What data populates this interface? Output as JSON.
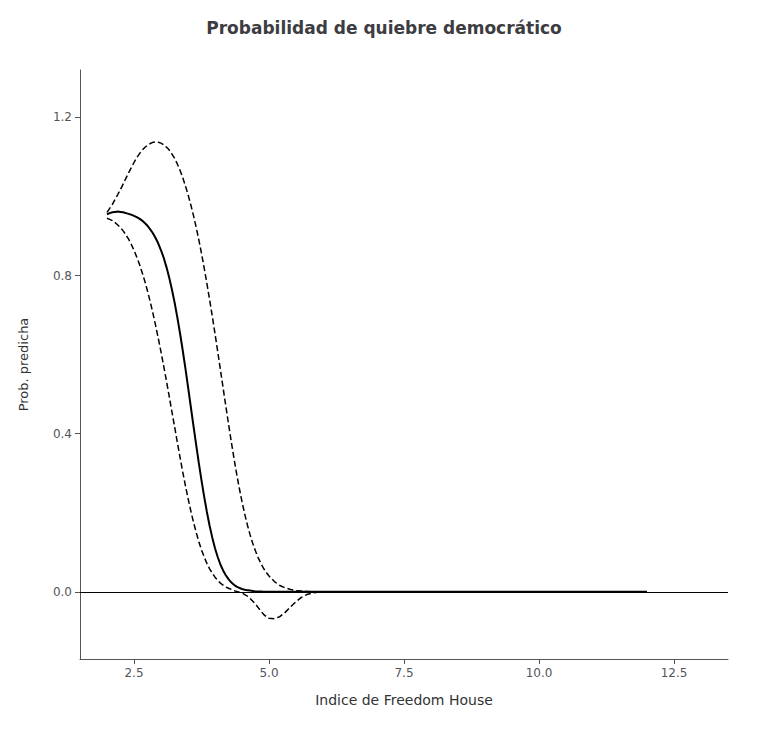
{
  "chart_data": {
    "type": "line",
    "title": "Probabilidad de quiebre democrático",
    "x_label": "Indice de Freedom House",
    "y_label": "Prob. predicha",
    "xlim": [
      1.5,
      13.5
    ],
    "ylim": [
      -0.17,
      1.32
    ],
    "xticks": [
      2.5,
      {
        "value": 5.0,
        "label": "5.0"
      },
      7.5,
      {
        "value": 10.0,
        "label": "10.0"
      },
      12.5
    ],
    "yticks": [
      {
        "value": 0.0,
        "label": "0.0"
      },
      0.4,
      0.8,
      1.2
    ],
    "grid": false,
    "series": [
      {
        "type": "line",
        "color": "#000000",
        "line_style": "solid",
        "x": [
          2.0,
          2.05,
          2.1,
          2.15,
          2.2,
          2.25,
          2.3,
          2.35,
          2.4,
          2.45,
          2.5,
          2.55,
          2.6,
          2.65,
          2.7,
          2.75,
          2.8,
          2.85,
          2.9,
          2.95,
          3.0,
          3.05,
          3.1,
          3.15,
          3.2,
          3.25,
          3.3,
          3.35,
          3.4,
          3.45,
          3.5,
          3.55,
          3.6,
          3.65,
          3.7,
          3.75,
          3.8,
          3.85,
          3.9,
          3.95,
          4.0,
          4.05,
          4.1,
          4.15,
          4.2,
          4.25,
          4.3,
          4.35,
          4.4,
          4.45,
          4.5,
          4.55,
          4.6,
          4.65,
          4.7,
          4.75,
          4.8,
          4.85,
          4.9,
          4.95,
          5.0,
          5.1,
          5.2,
          5.3,
          5.5,
          6.0,
          7.0,
          8.0,
          9.0,
          10.0,
          12.0
        ],
        "values": [
          0.955,
          0.958,
          0.96,
          0.961,
          0.962,
          0.961,
          0.96,
          0.958,
          0.956,
          0.954,
          0.951,
          0.948,
          0.944,
          0.939,
          0.933,
          0.926,
          0.917,
          0.907,
          0.895,
          0.881,
          0.864,
          0.845,
          0.822,
          0.796,
          0.766,
          0.733,
          0.696,
          0.656,
          0.613,
          0.567,
          0.519,
          0.47,
          0.421,
          0.373,
          0.326,
          0.282,
          0.24,
          0.202,
          0.167,
          0.137,
          0.11,
          0.088,
          0.069,
          0.054,
          0.042,
          0.032,
          0.024,
          0.018,
          0.013,
          0.01,
          0.007,
          0.005,
          0.004,
          0.003,
          0.002,
          0.001,
          0.001,
          0.001,
          0.0,
          0.0,
          0.0,
          0.0,
          0.0,
          0.0,
          0.0,
          0.0,
          0.0,
          0.0,
          0.0,
          0.0,
          0.0
        ]
      },
      {
        "type": "line",
        "color": "#000000",
        "line_style": "dashed",
        "x": [
          2.0,
          2.05,
          2.1,
          2.15,
          2.2,
          2.25,
          2.3,
          2.35,
          2.4,
          2.45,
          2.5,
          2.55,
          2.6,
          2.65,
          2.7,
          2.75,
          2.8,
          2.85,
          2.9,
          2.95,
          3.0,
          3.05,
          3.1,
          3.15,
          3.2,
          3.25,
          3.3,
          3.35,
          3.4,
          3.45,
          3.5,
          3.55,
          3.6,
          3.65,
          3.7,
          3.75,
          3.8,
          3.85,
          3.9,
          3.95,
          4.0,
          4.05,
          4.1,
          4.15,
          4.2,
          4.25,
          4.3,
          4.35,
          4.4,
          4.45,
          4.5,
          4.55,
          4.6,
          4.65,
          4.7,
          4.75,
          4.8,
          4.85,
          4.9,
          4.95,
          5.0,
          5.1,
          5.2,
          5.3,
          5.4,
          5.5,
          5.6,
          5.7,
          5.8,
          5.9,
          6.0,
          7.0,
          8.0,
          9.0,
          12.0
        ],
        "values": [
          0.96,
          0.97,
          0.98,
          0.993,
          1.005,
          1.018,
          1.032,
          1.046,
          1.06,
          1.073,
          1.086,
          1.098,
          1.108,
          1.117,
          1.124,
          1.13,
          1.134,
          1.137,
          1.138,
          1.137,
          1.135,
          1.131,
          1.125,
          1.118,
          1.108,
          1.097,
          1.083,
          1.067,
          1.049,
          1.028,
          1.005,
          0.98,
          0.953,
          0.923,
          0.891,
          0.856,
          0.819,
          0.78,
          0.739,
          0.697,
          0.653,
          0.608,
          0.562,
          0.516,
          0.47,
          0.425,
          0.381,
          0.339,
          0.299,
          0.262,
          0.228,
          0.197,
          0.169,
          0.144,
          0.122,
          0.103,
          0.086,
          0.072,
          0.059,
          0.049,
          0.04,
          0.026,
          0.016,
          0.01,
          0.006,
          0.003,
          0.002,
          0.001,
          0.0,
          0.0,
          0.0,
          0.0,
          0.0,
          0.0,
          0.0
        ]
      },
      {
        "type": "line",
        "color": "#000000",
        "line_style": "dashed",
        "x": [
          2.0,
          2.05,
          2.1,
          2.15,
          2.2,
          2.25,
          2.3,
          2.35,
          2.4,
          2.45,
          2.5,
          2.55,
          2.6,
          2.65,
          2.7,
          2.75,
          2.8,
          2.85,
          2.9,
          2.95,
          3.0,
          3.05,
          3.1,
          3.15,
          3.2,
          3.25,
          3.3,
          3.35,
          3.4,
          3.45,
          3.5,
          3.55,
          3.6,
          3.65,
          3.7,
          3.75,
          3.8,
          3.85,
          3.9,
          3.95,
          4.0,
          4.05,
          4.1,
          4.15,
          4.2,
          4.25,
          4.3,
          4.35,
          4.4,
          4.45,
          4.5,
          4.55,
          4.6,
          4.65,
          4.7,
          4.75,
          4.8,
          4.85,
          4.9,
          4.95,
          5.0,
          5.1,
          5.2,
          5.3,
          5.4,
          5.5,
          5.6,
          5.7,
          5.8,
          5.9,
          6.0,
          7.0,
          8.0,
          9.0,
          12.0
        ],
        "values": [
          0.945,
          0.942,
          0.939,
          0.934,
          0.928,
          0.921,
          0.913,
          0.903,
          0.892,
          0.879,
          0.864,
          0.847,
          0.829,
          0.808,
          0.786,
          0.761,
          0.734,
          0.705,
          0.674,
          0.641,
          0.607,
          0.571,
          0.534,
          0.496,
          0.457,
          0.419,
          0.38,
          0.342,
          0.305,
          0.27,
          0.237,
          0.206,
          0.177,
          0.151,
          0.127,
          0.106,
          0.088,
          0.072,
          0.058,
          0.047,
          0.037,
          0.029,
          0.022,
          0.017,
          0.012,
          0.009,
          0.006,
          0.003,
          0.001,
          -0.001,
          -0.003,
          -0.007,
          -0.011,
          -0.017,
          -0.024,
          -0.031,
          -0.04,
          -0.049,
          -0.057,
          -0.063,
          -0.067,
          -0.068,
          -0.063,
          -0.052,
          -0.038,
          -0.025,
          -0.014,
          -0.007,
          -0.003,
          -0.001,
          0.0,
          0.0,
          0.0,
          0.0,
          0.0
        ]
      },
      {
        "type": "hline",
        "color": "#000000",
        "line_style": "solid",
        "values": [
          0
        ]
      }
    ]
  }
}
